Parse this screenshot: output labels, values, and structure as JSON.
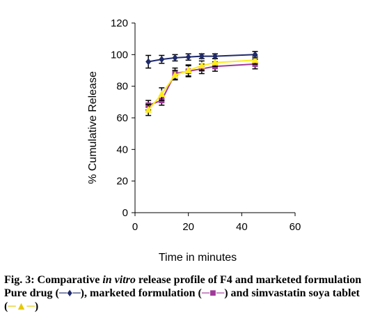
{
  "chart_data": {
    "type": "line",
    "title": "",
    "xlabel": "Time in minutes",
    "ylabel": "% Cumulative Release",
    "xlim": [
      0,
      60
    ],
    "ylim": [
      0,
      120
    ],
    "xticks": [
      "0",
      "20",
      "40",
      "60"
    ],
    "yticks": [
      "0",
      "20",
      "40",
      "60",
      "80",
      "100",
      "120"
    ],
    "grid": false,
    "series": [
      {
        "name": "Pure drug",
        "color": "#1f2a6b",
        "marker": "diamond",
        "x": [
          5,
          10,
          15,
          20,
          25,
          30,
          45
        ],
        "y": [
          95.5,
          97,
          98,
          98.5,
          99,
          99,
          100
        ],
        "err": [
          4,
          2.5,
          2,
          2,
          1.5,
          1.5,
          2
        ]
      },
      {
        "name": "marketed formulation",
        "color": "#a0399a",
        "marker": "square",
        "x": [
          5,
          10,
          15,
          20,
          25,
          30,
          45
        ],
        "y": [
          68,
          71,
          88,
          89.5,
          91,
          92.5,
          94
        ],
        "err": [
          3,
          3,
          3.5,
          3.5,
          3,
          3,
          3
        ]
      },
      {
        "name": "simvastatin soya tablet",
        "color": "#ffeb1a",
        "marker": "triangle",
        "x": [
          5,
          10,
          15,
          20,
          25,
          30,
          45
        ],
        "y": [
          65,
          75,
          87,
          90,
          93,
          95,
          96.5
        ],
        "err": [
          3.5,
          4,
          3,
          3.5,
          3,
          2.5,
          2.5
        ]
      }
    ]
  },
  "caption": {
    "label": "Fig. 3:",
    "text_a": "Comparative",
    "text_italic": "in vitro",
    "text_b": "release profile of F4 and marketed formulation",
    "line2_a": "Pure drug (",
    "line2_b": "), marketed formulation (",
    "line2_c": ") and simvastatin soya tablet (",
    "line2_d": ")",
    "key_pure": "─♦─",
    "key_marketed": "─■─",
    "key_soya": "─▲─"
  }
}
